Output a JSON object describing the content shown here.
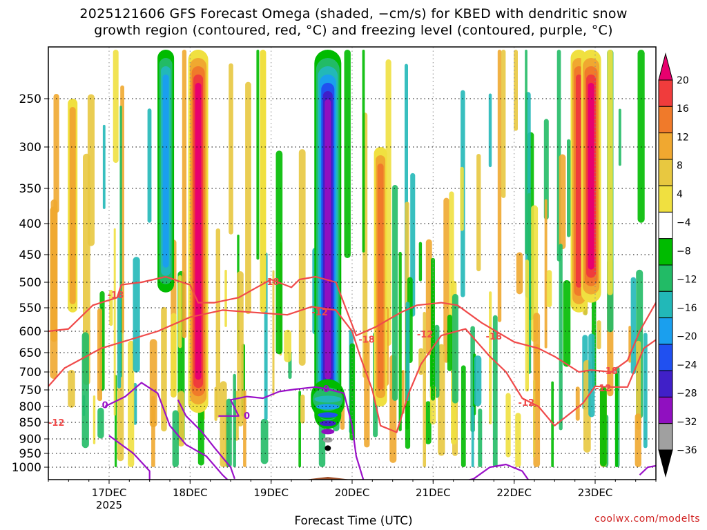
{
  "title_lines": [
    "2025121606 GFS Forecast Omega (shaded, −cm/s) for KBED with dendritic snow",
    "growth region (contoured, red, °C) and freezing level (contoured, purple, °C)"
  ],
  "credit": "coolwx.com/modelts",
  "chart_data": {
    "type": "heatmap",
    "title": "2025121606 GFS Forecast Omega (shaded, −cm/s) for KBED with dendritic snow growth region (contoured, red, °C) and freezing level (contoured, purple, °C)",
    "xlabel": "Forecast Time (UTC)",
    "ylabel": "",
    "xlim_days": [
      16.25,
      23.75
    ],
    "ylim": [
      1050,
      200
    ],
    "y_ticks": [
      250,
      300,
      350,
      400,
      450,
      500,
      550,
      600,
      650,
      700,
      750,
      800,
      850,
      900,
      950,
      1000
    ],
    "x_ticks": [
      {
        "day": 17,
        "label": "17DEC",
        "sublabel": "2025"
      },
      {
        "day": 18,
        "label": "18DEC",
        "sublabel": ""
      },
      {
        "day": 19,
        "label": "19DEC",
        "sublabel": ""
      },
      {
        "day": 20,
        "label": "20DEC",
        "sublabel": ""
      },
      {
        "day": 21,
        "label": "21DEC",
        "sublabel": ""
      },
      {
        "day": 22,
        "label": "22DEC",
        "sublabel": ""
      },
      {
        "day": 23,
        "label": "23DEC",
        "sublabel": ""
      }
    ],
    "grid": true,
    "colorbar": {
      "labels": [
        "20",
        "16",
        "12",
        "8",
        "4",
        "−4",
        "−8",
        "−12",
        "−16",
        "−20",
        "−24",
        "−28",
        "−32",
        "−36"
      ],
      "colors": [
        "#e8006e",
        "#f03c3c",
        "#f07a2a",
        "#f0a830",
        "#e8c840",
        "#f0e040",
        "#ffffff",
        "#00bb00",
        "#22bb66",
        "#22b8b8",
        "#1a9fee",
        "#2050f0",
        "#4020c8",
        "#9010c0",
        "#a0a0a0",
        "#000000"
      ]
    },
    "omega_features": [
      {
        "day": 16.55,
        "p_top": 250,
        "p_bot": 560,
        "value": 10
      },
      {
        "day": 17.7,
        "p_top": 150,
        "p_bot": 520,
        "value": -16
      },
      {
        "day": 18.1,
        "p_top": 150,
        "p_bot": 820,
        "value": 20
      },
      {
        "day": 18.9,
        "p_top": 150,
        "p_bot": 560,
        "value": 6
      },
      {
        "day": 19.7,
        "p_top": 150,
        "p_bot": 870,
        "value": -28
      },
      {
        "day": 19.7,
        "p_top": 720,
        "p_bot": 840,
        "value": -36
      },
      {
        "day": 20.35,
        "p_top": 300,
        "p_bot": 800,
        "value": 12
      },
      {
        "day": 22.8,
        "p_top": 150,
        "p_bot": 560,
        "value": 16
      },
      {
        "day": 22.95,
        "p_top": 150,
        "p_bot": 540,
        "value": 20
      }
    ],
    "series": [
      {
        "name": "DGZ -12°C",
        "color": "#f04a4a",
        "label": "-12",
        "label_points": [
          {
            "day": 16.35,
            "p": 852
          },
          {
            "day": 19.6,
            "p": 560
          },
          {
            "day": 20.9,
            "p": 608
          },
          {
            "day": 22.15,
            "p": 790
          },
          {
            "day": 23.1,
            "p": 746
          }
        ],
        "points": [
          [
            16.25,
            740
          ],
          [
            16.45,
            690
          ],
          [
            16.9,
            640
          ],
          [
            17.6,
            600
          ],
          [
            18.0,
            570
          ],
          [
            18.4,
            555
          ],
          [
            18.8,
            560
          ],
          [
            19.2,
            565
          ],
          [
            19.5,
            548
          ],
          [
            19.8,
            555
          ],
          [
            20.0,
            600
          ],
          [
            20.1,
            660
          ],
          [
            20.25,
            750
          ],
          [
            20.35,
            860
          ],
          [
            20.55,
            880
          ],
          [
            20.7,
            760
          ],
          [
            20.85,
            680
          ],
          [
            21.1,
            610
          ],
          [
            21.4,
            595
          ],
          [
            21.7,
            660
          ],
          [
            21.9,
            700
          ],
          [
            22.1,
            775
          ],
          [
            22.3,
            800
          ],
          [
            22.5,
            860
          ],
          [
            22.7,
            820
          ],
          [
            22.85,
            790
          ],
          [
            23.0,
            740
          ],
          [
            23.2,
            742
          ],
          [
            23.4,
            742
          ],
          [
            23.6,
            640
          ],
          [
            23.75,
            620
          ]
        ]
      },
      {
        "name": "DGZ -18°C",
        "color": "#f04a4a",
        "label": "-18",
        "label_points": [
          {
            "day": 17.08,
            "p": 526
          },
          {
            "day": 19.0,
            "p": 500
          },
          {
            "day": 20.18,
            "p": 620
          },
          {
            "day": 21.75,
            "p": 613
          },
          {
            "day": 23.18,
            "p": 698
          }
        ],
        "points": [
          [
            16.25,
            600
          ],
          [
            16.5,
            595
          ],
          [
            16.8,
            545
          ],
          [
            17.1,
            530
          ],
          [
            17.15,
            505
          ],
          [
            17.4,
            500
          ],
          [
            17.7,
            490
          ],
          [
            17.9,
            500
          ],
          [
            18.0,
            505
          ],
          [
            18.1,
            540
          ],
          [
            18.3,
            540
          ],
          [
            18.6,
            530
          ],
          [
            18.8,
            512
          ],
          [
            19.0,
            495
          ],
          [
            19.25,
            510
          ],
          [
            19.35,
            495
          ],
          [
            19.55,
            490
          ],
          [
            19.8,
            500
          ],
          [
            20.05,
            610
          ],
          [
            20.3,
            590
          ],
          [
            20.6,
            560
          ],
          [
            20.8,
            545
          ],
          [
            21.1,
            540
          ],
          [
            21.3,
            545
          ],
          [
            21.6,
            582
          ],
          [
            22.0,
            625
          ],
          [
            22.3,
            640
          ],
          [
            22.5,
            660
          ],
          [
            22.8,
            700
          ],
          [
            22.95,
            695
          ],
          [
            23.2,
            700
          ],
          [
            23.4,
            670
          ],
          [
            23.55,
            600
          ],
          [
            23.75,
            540
          ]
        ]
      },
      {
        "name": "Freezing level 0°C (west)",
        "color": "#9a10c8",
        "label": "0",
        "label_points": [
          {
            "day": 16.95,
            "p": 797
          }
        ],
        "points": [
          [
            16.95,
            800
          ],
          [
            17.2,
            770
          ],
          [
            17.4,
            730
          ],
          [
            17.6,
            760
          ],
          [
            17.75,
            860
          ],
          [
            17.95,
            920
          ],
          [
            18.2,
            960
          ],
          [
            18.4,
            1020
          ],
          [
            18.5,
            1040
          ]
        ]
      },
      {
        "name": "Freezing level 0°C (mid)",
        "color": "#9a10c8",
        "label": "0",
        "label_points": [
          {
            "day": 18.7,
            "p": 830
          }
        ],
        "points": [
          [
            17.0,
            890
          ],
          [
            17.3,
            950
          ],
          [
            17.5,
            1010
          ],
          [
            17.5,
            1050
          ]
        ]
      },
      {
        "name": "Freezing level 0°C (bridge)",
        "color": "#9a10c8",
        "label": "0",
        "label_points": [],
        "points": [
          [
            17.85,
            780
          ],
          [
            17.95,
            830
          ],
          [
            18.15,
            880
          ],
          [
            18.3,
            930
          ],
          [
            18.5,
            1000
          ],
          [
            18.55,
            1030
          ]
        ]
      },
      {
        "name": "Freezing level 0°C (east)",
        "color": "#9a10c8",
        "label": "0",
        "label_points": [
          {
            "day": 19.68,
            "p": 748
          }
        ],
        "points": [
          [
            18.35,
            830
          ],
          [
            18.6,
            830
          ],
          [
            18.5,
            780
          ],
          [
            18.7,
            770
          ],
          [
            18.9,
            775
          ],
          [
            19.1,
            755
          ],
          [
            19.3,
            748
          ],
          [
            19.55,
            742
          ],
          [
            19.7,
            748
          ],
          [
            19.9,
            760
          ],
          [
            20.0,
            860
          ],
          [
            20.05,
            960
          ],
          [
            20.15,
            1040
          ]
        ]
      },
      {
        "name": "Freezing level 0°C (far east)",
        "color": "#9a10c8",
        "label": "0",
        "label_points": [],
        "points": [
          [
            21.3,
            1040
          ],
          [
            21.5,
            1030
          ],
          [
            21.7,
            1000
          ],
          [
            21.9,
            990
          ],
          [
            22.1,
            1010
          ],
          [
            22.2,
            1040
          ]
        ]
      },
      {
        "name": "Freezing level 0°C (edge)",
        "color": "#9a10c8",
        "label": "0",
        "label_points": [],
        "points": [
          [
            23.55,
            1020
          ],
          [
            23.65,
            1000
          ],
          [
            23.75,
            995
          ]
        ]
      }
    ],
    "terrain": {
      "color": "#a0522d",
      "points": [
        [
          16.25,
          1040
        ],
        [
          17.0,
          1040
        ],
        [
          17.8,
          1040
        ],
        [
          18.3,
          1040
        ],
        [
          18.8,
          1038
        ],
        [
          19.3,
          1035
        ],
        [
          19.7,
          1025
        ],
        [
          20.1,
          1035
        ],
        [
          20.5,
          1040
        ],
        [
          21.2,
          1038
        ],
        [
          22.0,
          1038
        ],
        [
          22.8,
          1040
        ],
        [
          23.75,
          1040
        ]
      ]
    }
  }
}
